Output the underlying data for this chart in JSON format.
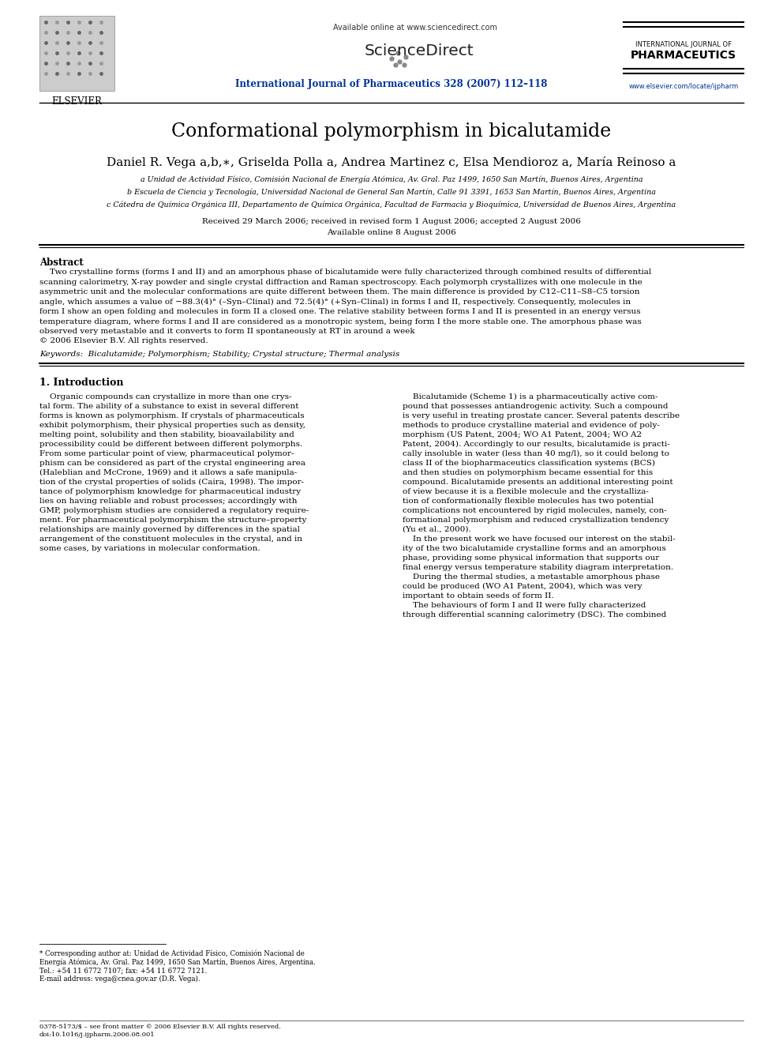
{
  "background_color": "#ffffff",
  "page_width": 9.92,
  "page_height": 13.23,
  "dpi": 100,
  "header": {
    "available_online": "Available online at www.sciencedirect.com",
    "journal_name": "International Journal of Pharmaceutics 328 (2007) 112–118",
    "elsevier_label": "ELSEVIER",
    "sciencedirect_label": "ScienceDirect",
    "intl_journal_of": "INTERNATIONAL JOURNAL OF",
    "pharmaceutics": "PHARMACEUTICS",
    "website": "www.elsevier.com/locate/ijpharm"
  },
  "title": "Conformational polymorphism in bicalutamide",
  "authors_line": "Daniel R. Vega a,b,∗, Griselda Polla a, Andrea Martinez c, Elsa Mendioroz a, María Reinoso a",
  "affiliations": [
    "a Unidad de Actividad Físico, Comisión Nacional de Energía Atómica, Av. Gral. Paz 1499, 1650 San Martín, Buenos Aires, Argentina",
    "b Escuela de Ciencia y Tecnología, Universidad Nacional de General San Martín, Calle 91 3391, 1653 San Martín, Buenos Aires, Argentina",
    "c Cátedra de Química Orgánica III, Departamento de Química Orgánica, Facultad de Farmacia y Bioquímica, Universidad de Buenos Aires, Argentina"
  ],
  "received": "Received 29 March 2006; received in revised form 1 August 2006; accepted 2 August 2006",
  "available": "Available online 8 August 2006",
  "abstract_title": "Abstract",
  "abstract_lines": [
    "    Two crystalline forms (forms I and II) and an amorphous phase of bicalutamide were fully characterized through combined results of differential",
    "scanning calorimetry, X-ray powder and single crystal diffraction and Raman spectroscopy. Each polymorph crystallizes with one molecule in the",
    "asymmetric unit and the molecular conformations are quite different between them. The main difference is provided by C12–C11–S8–C5 torsion",
    "angle, which assumes a value of −88.3(4)° (–Syn–Clinal) and 72.5(4)° (+Syn–Clinal) in forms I and II, respectively. Consequently, molecules in",
    "form I show an open folding and molecules in form II a closed one. The relative stability between forms I and II is presented in an energy versus",
    "temperature diagram, where forms I and II are considered as a monotropic system, being form I the more stable one. The amorphous phase was",
    "observed very metastable and it converts to form II spontaneously at RT in around a week",
    "© 2006 Elsevier B.V. All rights reserved."
  ],
  "keywords": "Keywords:  Bicalutamide; Polymorphism; Stability; Crystal structure; Thermal analysis",
  "section1_title": "1. Introduction",
  "col1_lines": [
    "    Organic compounds can crystallize in more than one crys-",
    "tal form. The ability of a substance to exist in several different",
    "forms is known as polymorphism. If crystals of pharmaceuticals",
    "exhibit polymorphism, their physical properties such as density,",
    "melting point, solubility and then stability, bioavailability and",
    "processibility could be different between different polymorphs.",
    "From some particular point of view, pharmaceutical polymor-",
    "phism can be considered as part of the crystal engineering area",
    "(Haleblian and McCrone, 1969) and it allows a safe manipula-",
    "tion of the crystal properties of solids (Caira, 1998). The impor-",
    "tance of polymorphism knowledge for pharmaceutical industry",
    "lies on having reliable and robust processes; accordingly with",
    "GMP, polymorphism studies are considered a regulatory require-",
    "ment. For pharmaceutical polymorphism the structure–property",
    "relationships are mainly governed by differences in the spatial",
    "arrangement of the constituent molecules in the crystal, and in",
    "some cases, by variations in molecular conformation."
  ],
  "col2_lines": [
    "    Bicalutamide (Scheme 1) is a pharmaceutically active com-",
    "pound that possesses antiandrogenic activity. Such a compound",
    "is very useful in treating prostate cancer. Several patents describe",
    "methods to produce crystalline material and evidence of poly-",
    "morphism (US Patent, 2004; WO A1 Patent, 2004; WO A2",
    "Patent, 2004). Accordingly to our results, bicalutamide is practi-",
    "cally insoluble in water (less than 40 mg/l), so it could belong to",
    "class II of the biopharmaceutics classification systems (BCS)",
    "and then studies on polymorphism became essential for this",
    "compound. Bicalutamide presents an additional interesting point",
    "of view because it is a flexible molecule and the crystalliza-",
    "tion of conformationally flexible molecules has two potential",
    "complications not encountered by rigid molecules, namely, con-",
    "formational polymorphism and reduced crystallization tendency",
    "(Yu et al., 2000).",
    "    In the present work we have focused our interest on the stabil-",
    "ity of the two bicalutamide crystalline forms and an amorphous",
    "phase, providing some physical information that supports our",
    "final energy versus temperature stability diagram interpretation.",
    "    During the thermal studies, a metastable amorphous phase",
    "could be produced (WO A1 Patent, 2004), which was very",
    "important to obtain seeds of form II.",
    "    The behaviours of form I and II were fully characterized",
    "through differential scanning calorimetry (DSC). The combined"
  ],
  "footnote_lines": [
    "* Corresponding author at: Unidad de Actividad Físico, Comisión Nacional de",
    "Energía Atómica, Av. Gral. Paz 1499, 1650 San Martín, Buenos Aires, Argentina.",
    "Tel.: +54 11 6772 7107; fax: +54 11 6772 7121.",
    "E-mail address: vega@cnea.gov.ar (D.R. Vega)."
  ],
  "bottom_lines": [
    "0378-5173/$ – see front matter © 2006 Elsevier B.V. All rights reserved.",
    "doi:10.1016/j.ijpharm.2006.08.001"
  ],
  "PW": 992,
  "PH": 1323
}
